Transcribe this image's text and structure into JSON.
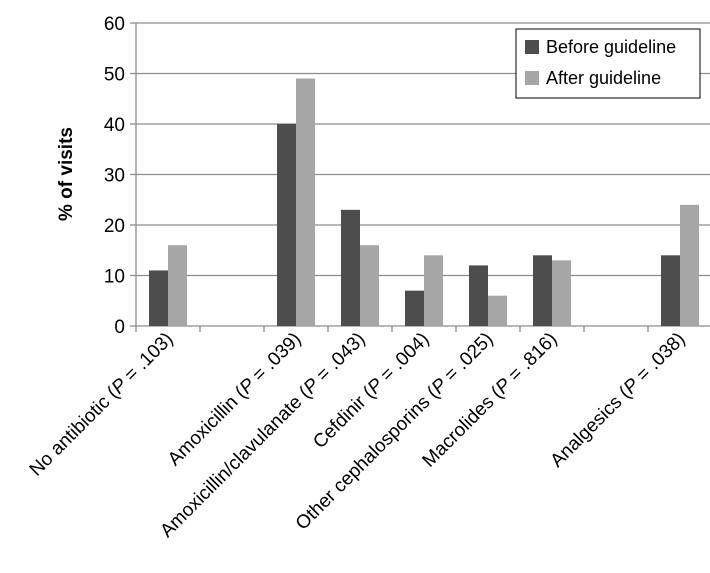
{
  "chart_data": {
    "type": "bar",
    "ylabel": "% of visits",
    "xlabel": "",
    "ylim": [
      0,
      60
    ],
    "yticks": [
      0,
      10,
      20,
      30,
      40,
      50,
      60
    ],
    "grid": true,
    "legend_position": "top-right",
    "categories": [
      {
        "parts": [
          "No antibiotic (",
          "P",
          " = .103)"
        ]
      },
      {
        "parts": [
          "",
          "",
          ""
        ]
      },
      {
        "parts": [
          "Amoxicillin (",
          "P",
          " = .039)"
        ]
      },
      {
        "parts": [
          "Amoxicillin/clavulanate (",
          "P",
          " = .043)"
        ]
      },
      {
        "parts": [
          "Cefdinir (",
          "P",
          " = .004)"
        ]
      },
      {
        "parts": [
          "Other cephalosporins (",
          "P",
          " = .025)"
        ]
      },
      {
        "parts": [
          "Macrolides (",
          "P",
          " = .816)"
        ]
      },
      {
        "parts": [
          "",
          "",
          ""
        ]
      },
      {
        "parts": [
          "Analgesics (",
          "P",
          " = .038)"
        ]
      }
    ],
    "series": [
      {
        "name": "Before guideline",
        "color": "#4d4d4d",
        "values": [
          11,
          null,
          40,
          23,
          7,
          12,
          14,
          null,
          14
        ]
      },
      {
        "name": "After guideline",
        "color": "#a6a6a6",
        "values": [
          16,
          null,
          49,
          16,
          14,
          6,
          13,
          null,
          24
        ]
      }
    ]
  }
}
